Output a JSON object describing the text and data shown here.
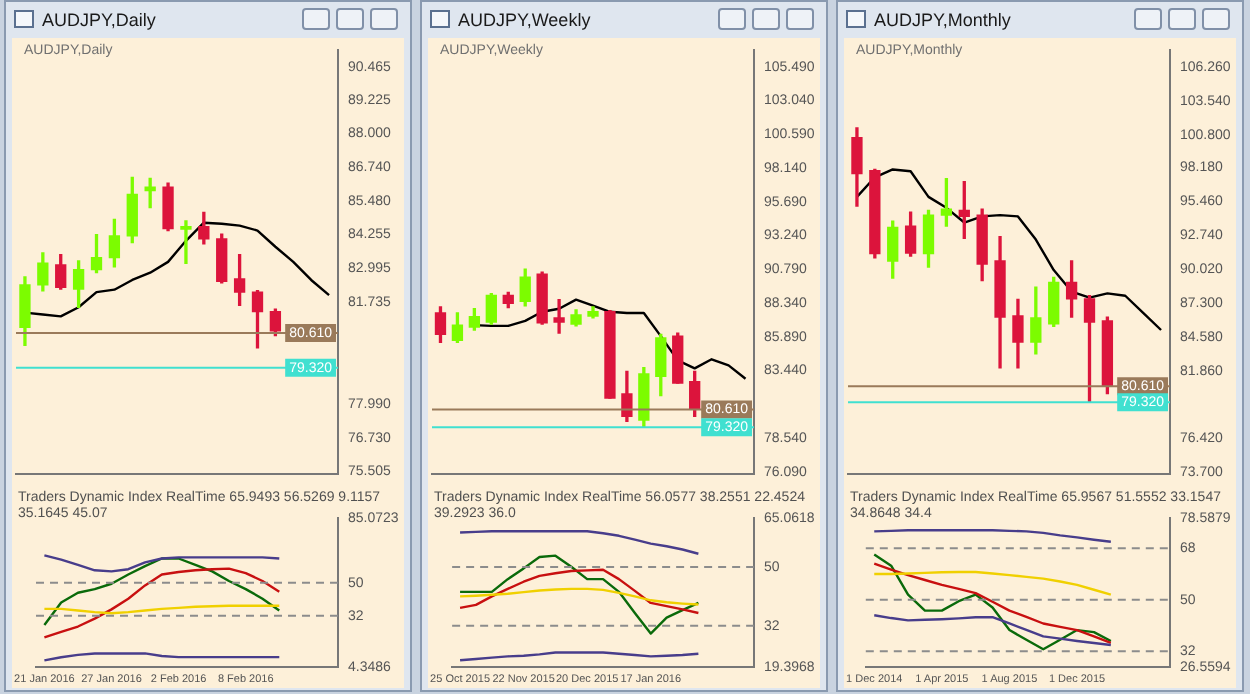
{
  "chart_data": [
    {
      "type": "candlestick",
      "title": "AUDJPY,Daily",
      "subtitle": "AUDJPY,Daily",
      "tick_labels": "y",
      "categories": [
        null,
        null,
        null,
        null,
        null,
        null,
        null,
        null,
        null,
        null,
        null,
        null,
        null,
        null,
        null,
        null,
        null,
        null
      ],
      "ohlc": [
        [
          80.82,
          82.68,
          80.15,
          82.39
        ],
        [
          82.39,
          83.57,
          82.17,
          83.19
        ],
        [
          83.13,
          83.51,
          82.23,
          82.3
        ],
        [
          82.23,
          83.28,
          81.56,
          82.95
        ],
        [
          82.95,
          84.25,
          82.84,
          83.4
        ],
        [
          83.4,
          84.81,
          83.06,
          84.2
        ],
        [
          84.2,
          86.37,
          83.95,
          85.74
        ],
        [
          85.88,
          86.33,
          85.25,
          86.01
        ],
        [
          86.01,
          86.15,
          84.4,
          84.47
        ],
        [
          84.45,
          84.76,
          83.19,
          84.54
        ],
        [
          84.54,
          85.07,
          83.91,
          84.09
        ],
        [
          84.09,
          84.27,
          82.46,
          82.52
        ],
        [
          82.61,
          83.51,
          81.63,
          82.12
        ],
        [
          82.12,
          82.17,
          80.06,
          81.4
        ],
        [
          81.4,
          81.49,
          80.51,
          80.69
        ],
        null,
        null,
        null
      ],
      "colors": [
        "#7cfc00",
        "#7cfc00",
        "#dc143c",
        "#7cfc00",
        "#7cfc00",
        "#7cfc00",
        "#7cfc00",
        "#7cfc00",
        "#dc143c",
        "#7cfc00",
        "#dc143c",
        "#dc143c",
        "#dc143c",
        "#dc143c",
        "#dc143c",
        null,
        null,
        null
      ],
      "series": [
        {
          "type": "line",
          "color": "#000000",
          "values": [
            81.36,
            81.29,
            81.22,
            81.56,
            82.12,
            82.21,
            82.57,
            82.84,
            83.24,
            84.02,
            84.69,
            84.65,
            84.58,
            84.4,
            83.8,
            83.24,
            82.57,
            82.01
          ]
        }
      ],
      "ylim": [
        75.4,
        91.07
      ],
      "yticks": [
        90.465,
        89.225,
        {
          "value": 88,
          "label": "88.000"
        },
        {
          "value": 86.74,
          "label": "86.740"
        },
        {
          "value": 85.48,
          "label": "85.480"
        },
        84.255,
        82.995,
        81.735,
        {
          "value": 77.99,
          "label": "77.990"
        },
        {
          "value": 76.73,
          "label": "76.730"
        },
        75.505
      ],
      "ref_lines": [
        {
          "axis": "y",
          "value": 80.61,
          "label": "80.610",
          "color": "#9a7a5a"
        },
        {
          "axis": "y",
          "value": 79.32,
          "label": "79.320",
          "color": "#40e0d0"
        }
      ]
    },
    {
      "type": "line",
      "annotations": [
        "Traders Dynamic Index RealTime 65.9493 56.5269 9.1157 35.1645 45.07"
      ],
      "categories": [
        "21 Jan 2016",
        null,
        null,
        null,
        "27 Jan 2016",
        null,
        null,
        null,
        "2 Feb 2016",
        null,
        null,
        null,
        "8 Feb 2016",
        null,
        null,
        null,
        null,
        null
      ],
      "series": [
        {
          "color": "#483d8b",
          "values": [
            64.8,
            62.5,
            59.6,
            56.7,
            56.1,
            57.3,
            61.0,
            63.1,
            63.7,
            63.7,
            63.7,
            63.7,
            63.7,
            63.7,
            63.1,
            null,
            null,
            null
          ]
        },
        {
          "color": "#483d8b",
          "values": [
            7.8,
            9.5,
            10.8,
            11.6,
            11.6,
            11.6,
            11.6,
            10.2,
            9.6,
            9.6,
            9.6,
            9.6,
            9.6,
            9.6,
            9.6,
            null,
            null,
            null
          ]
        },
        {
          "color": "#f0d000",
          "values": [
            35.8,
            35.8,
            34.9,
            34.0,
            33.4,
            34.0,
            34.9,
            35.8,
            36.3,
            36.9,
            37.2,
            37.5,
            37.5,
            37.5,
            37.5,
            null,
            null,
            null
          ]
        },
        {
          "color": "#c81010",
          "values": [
            20.3,
            23.3,
            26.2,
            30.5,
            35.5,
            41.3,
            48.5,
            54.4,
            55.8,
            56.7,
            57.3,
            57.6,
            55.2,
            50.9,
            45.1,
            null,
            null,
            null
          ]
        },
        {
          "color": "#0a6a0a",
          "values": [
            27.0,
            39.2,
            44.5,
            46.5,
            49.4,
            54.4,
            59.0,
            63.1,
            63.1,
            59.6,
            56.1,
            50.9,
            46.5,
            41.3,
            34.9,
            null,
            null,
            null
          ]
        }
      ],
      "ylim": [
        4.3486,
        85.0723
      ],
      "yticks": [
        85.0723,
        50,
        32,
        4.3486
      ],
      "ref_lines": [
        {
          "axis": "y",
          "value": 50,
          "label": null,
          "color": "#8c8c8c",
          "line_style": "dashed"
        },
        {
          "axis": "y",
          "value": 32,
          "label": null,
          "color": "#8c8c8c",
          "line_style": "dashed"
        }
      ]
    },
    {
      "type": "candlestick",
      "title": "AUDJPY,Weekly",
      "subtitle": "AUDJPY,Weekly",
      "tick_labels": "y",
      "categories": [
        null,
        null,
        null,
        null,
        null,
        null,
        null,
        null,
        null,
        null,
        null,
        null,
        null,
        null,
        null,
        null,
        null,
        null,
        null
      ],
      "ohlc": [
        [
          87.61,
          88.05,
          85.49,
          86.06
        ],
        [
          85.62,
          87.61,
          85.49,
          86.73
        ],
        [
          86.59,
          87.92,
          86.37,
          87.34
        ],
        [
          86.95,
          89.02,
          86.81,
          88.89
        ],
        [
          88.89,
          89.11,
          88.01,
          88.32
        ],
        [
          88.45,
          90.79,
          88.14,
          90.21
        ],
        [
          90.43,
          90.57,
          86.81,
          86.9
        ],
        [
          87.26,
          88.58,
          86.15,
          86.95
        ],
        [
          86.81,
          87.83,
          86.68,
          87.48
        ],
        [
          87.39,
          88.05,
          87.26,
          87.7
        ],
        [
          87.7,
          87.79,
          81.43,
          81.43
        ],
        [
          81.74,
          83.37,
          79.75,
          80.1
        ],
        [
          79.84,
          83.64,
          79.31,
          83.19
        ],
        [
          83.02,
          86.06,
          81.61,
          85.8
        ],
        [
          85.93,
          86.15,
          82.53,
          82.53
        ],
        [
          82.62,
          83.37,
          80.1,
          80.63
        ],
        null,
        null,
        null
      ],
      "colors": [
        "#dc143c",
        "#7cfc00",
        "#7cfc00",
        "#7cfc00",
        "#dc143c",
        "#7cfc00",
        "#dc143c",
        "#dc143c",
        "#7cfc00",
        "#7cfc00",
        "#dc143c",
        "#dc143c",
        "#7cfc00",
        "#7cfc00",
        "#dc143c",
        "#dc143c",
        null,
        null,
        null
      ],
      "series": [
        {
          "type": "line",
          "color": "#000000",
          "values": [
            null,
            null,
            86.73,
            86.68,
            86.68,
            87.04,
            87.7,
            87.92,
            88.58,
            88.14,
            87.7,
            87.61,
            87.61,
            85.93,
            84.17,
            83.59,
            84.25,
            83.81,
            82.84
          ]
        }
      ],
      "ylim": [
        75.95,
        106.68
      ],
      "yticks": [
        {
          "value": 105.49,
          "label": "105.490"
        },
        {
          "value": 103.04,
          "label": "103.040"
        },
        {
          "value": 100.59,
          "label": "100.590"
        },
        {
          "value": 98.14,
          "label": "98.140"
        },
        {
          "value": 95.69,
          "label": "95.690"
        },
        {
          "value": 93.24,
          "label": "93.240"
        },
        {
          "value": 90.79,
          "label": "90.790"
        },
        {
          "value": 88.34,
          "label": "88.340"
        },
        {
          "value": 85.89,
          "label": "85.890"
        },
        {
          "value": 83.44,
          "label": "83.440"
        },
        {
          "value": 78.54,
          "label": "78.540"
        },
        {
          "value": 76.09,
          "label": "76.090"
        }
      ],
      "ref_lines": [
        {
          "axis": "y",
          "value": 80.61,
          "label": "80.610",
          "color": "#9a7a5a"
        },
        {
          "axis": "y",
          "value": 79.32,
          "label": "79.320",
          "color": "#40e0d0"
        }
      ]
    },
    {
      "type": "line",
      "annotations": [
        "Traders Dynamic Index RealTime 56.0577 38.2551 22.4524 39.2923 36.0"
      ],
      "categories": [
        "25 Oct 2015",
        null,
        null,
        null,
        "22 Nov 2015",
        null,
        null,
        null,
        "20 Dec 2015",
        null,
        null,
        null,
        "17 Jan 2016",
        null,
        null,
        null,
        null,
        null,
        null
      ],
      "series": [
        {
          "color": "#483d8b",
          "values": [
            60.6,
            60.8,
            61.0,
            61.0,
            61.0,
            61.0,
            61.0,
            61.0,
            61.0,
            60.4,
            59.6,
            58.4,
            57.2,
            56.4,
            55.4,
            54.1,
            null,
            null,
            null
          ]
        },
        {
          "color": "#483d8b",
          "values": [
            21.4,
            21.8,
            22.2,
            22.6,
            22.8,
            23.2,
            23.8,
            23.8,
            23.8,
            23.8,
            23.4,
            23.0,
            22.6,
            22.8,
            23.0,
            23.4,
            null,
            null,
            null
          ]
        },
        {
          "color": "#f0d000",
          "values": [
            41.0,
            41.2,
            41.5,
            41.8,
            42.3,
            42.8,
            43.1,
            43.3,
            43.3,
            43.0,
            42.1,
            41.0,
            39.8,
            39.2,
            38.8,
            38.5,
            null,
            null,
            null
          ]
        },
        {
          "color": "#c81010",
          "values": [
            37.5,
            38.4,
            41.0,
            43.3,
            45.5,
            47.3,
            48.1,
            48.8,
            49.0,
            49.2,
            46.3,
            42.7,
            39.0,
            38.0,
            37.0,
            35.9,
            null,
            null,
            null
          ]
        },
        {
          "color": "#0a6a0a",
          "values": [
            42.4,
            42.4,
            42.4,
            46.3,
            49.6,
            53.1,
            53.5,
            50.1,
            46.3,
            46.3,
            42.4,
            35.9,
            29.6,
            34.5,
            36.8,
            39.0,
            null,
            null,
            null
          ]
        }
      ],
      "ylim": [
        19.3968,
        65.0618
      ],
      "yticks": [
        65.0618,
        50,
        32,
        19.3968
      ],
      "ref_lines": [
        {
          "axis": "y",
          "value": 50,
          "label": null,
          "color": "#8c8c8c",
          "line_style": "dashed"
        },
        {
          "axis": "y",
          "value": 32,
          "label": null,
          "color": "#8c8c8c",
          "line_style": "dashed"
        }
      ]
    },
    {
      "type": "candlestick",
      "title": "AUDJPY,Monthly",
      "subtitle": "AUDJPY,Monthly",
      "tick_labels": "y",
      "categories": [
        null,
        null,
        null,
        null,
        null,
        null,
        null,
        null,
        null,
        null,
        null,
        null,
        null,
        null,
        null,
        null,
        null,
        null
      ],
      "ohlc": [
        [
          100.57,
          101.36,
          95.08,
          97.68
        ],
        [
          97.93,
          98.02,
          90.92,
          91.26
        ],
        [
          90.67,
          93.86,
          89.3,
          93.37
        ],
        [
          93.47,
          94.59,
          91.06,
          91.31
        ],
        [
          91.26,
          94.74,
          90.18,
          94.35
        ],
        [
          94.35,
          97.29,
          93.47,
          94.84
        ],
        [
          94.74,
          97.04,
          92.49,
          94.25
        ],
        [
          94.35,
          94.84,
          89.1,
          90.43
        ],
        [
          90.67,
          92.63,
          82.09,
          86.16
        ],
        [
          86.26,
          87.58,
          82.09,
          84.15
        ],
        [
          84.15,
          88.56,
          83.22,
          86.11
        ],
        [
          85.62,
          89.35,
          85.43,
          88.96
        ],
        [
          88.96,
          90.67,
          86.16,
          87.63
        ],
        [
          87.63,
          87.88,
          79.4,
          85.77
        ],
        [
          85.87,
          86.16,
          80.03,
          80.62
        ],
        null,
        null,
        null
      ],
      "colors": [
        "#dc143c",
        "#dc143c",
        "#7cfc00",
        "#dc143c",
        "#7cfc00",
        "#7cfc00",
        "#dc143c",
        "#dc143c",
        "#dc143c",
        "#dc143c",
        "#7cfc00",
        "#7cfc00",
        "#dc143c",
        "#dc143c",
        "#dc143c",
        null,
        null,
        null
      ],
      "series": [
        {
          "type": "line",
          "color": "#000000",
          "values": [
            95.82,
            97.39,
            98.02,
            97.88,
            95.82,
            94.94,
            93.76,
            94.25,
            94.35,
            94.25,
            92.39,
            89.94,
            88.22,
            87.73,
            88.07,
            87.88,
            86.51,
            85.13
          ]
        }
      ],
      "ylim": [
        73.6,
        107.58
      ],
      "yticks": [
        {
          "value": 106.26,
          "label": "106.260"
        },
        {
          "value": 103.54,
          "label": "103.540"
        },
        {
          "value": 100.8,
          "label": "100.800"
        },
        {
          "value": 98.18,
          "label": "98.180"
        },
        {
          "value": 95.46,
          "label": "95.460"
        },
        {
          "value": 92.74,
          "label": "92.740"
        },
        {
          "value": 90.02,
          "label": "90.020"
        },
        {
          "value": 87.3,
          "label": "87.300"
        },
        {
          "value": 84.58,
          "label": "84.580"
        },
        {
          "value": 81.86,
          "label": "81.860"
        },
        {
          "value": 76.42,
          "label": "76.420"
        },
        {
          "value": 73.7,
          "label": "73.700"
        }
      ],
      "ref_lines": [
        {
          "axis": "y",
          "value": 80.61,
          "label": "80.610",
          "color": "#9a7a5a"
        },
        {
          "axis": "y",
          "value": 79.32,
          "label": "79.320",
          "color": "#40e0d0"
        }
      ]
    },
    {
      "type": "line",
      "annotations": [
        "Traders Dynamic Index RealTime 65.9567 51.5552 33.1547 34.8648 34.4"
      ],
      "categories": [
        "1 Dec 2014",
        null,
        null,
        null,
        "1 Apr 2015",
        null,
        null,
        null,
        "1 Aug 2015",
        null,
        null,
        null,
        "1 Dec 2015",
        null,
        null,
        null,
        null,
        null
      ],
      "series": [
        {
          "color": "#483d8b",
          "values": [
            73.9,
            74.1,
            74.3,
            74.3,
            74.3,
            74.3,
            74.3,
            74.3,
            74.1,
            73.9,
            73.4,
            72.5,
            71.8,
            71.0,
            70.3,
            null,
            null,
            null
          ]
        },
        {
          "color": "#483d8b",
          "values": [
            44.6,
            43.6,
            42.8,
            43.0,
            43.2,
            43.5,
            43.9,
            43.9,
            41.7,
            39.5,
            37.2,
            36.4,
            35.6,
            34.9,
            34.2,
            null,
            null,
            null
          ]
        },
        {
          "color": "#f0d000",
          "values": [
            59.0,
            59.0,
            59.2,
            59.4,
            59.6,
            59.7,
            59.7,
            59.2,
            58.6,
            58.0,
            57.4,
            56.4,
            55.2,
            53.5,
            51.8,
            null,
            null,
            null
          ]
        },
        {
          "color": "#c81010",
          "values": [
            62.6,
            60.5,
            58.6,
            56.9,
            55.2,
            53.8,
            52.3,
            49.3,
            46.2,
            44.0,
            41.7,
            40.5,
            39.4,
            37.2,
            34.9,
            null,
            null,
            null
          ]
        },
        {
          "color": "#0a6a0a",
          "values": [
            65.8,
            61.9,
            51.8,
            46.2,
            46.2,
            49.5,
            51.8,
            47.3,
            39.4,
            36.0,
            32.7,
            36.0,
            39.4,
            38.7,
            35.6,
            null,
            null,
            null
          ]
        }
      ],
      "ylim": [
        26.5594,
        78.5879
      ],
      "yticks": [
        78.5879,
        68,
        50,
        32,
        26.5594
      ],
      "ref_lines": [
        {
          "axis": "y",
          "value": 68,
          "label": null,
          "color": "#8c8c8c",
          "line_style": "dashed"
        },
        {
          "axis": "y",
          "value": 50,
          "label": null,
          "color": "#8c8c8c",
          "line_style": "dashed"
        },
        {
          "axis": "y",
          "value": 32,
          "label": null,
          "color": "#8c8c8c",
          "line_style": "dashed"
        }
      ]
    }
  ]
}
